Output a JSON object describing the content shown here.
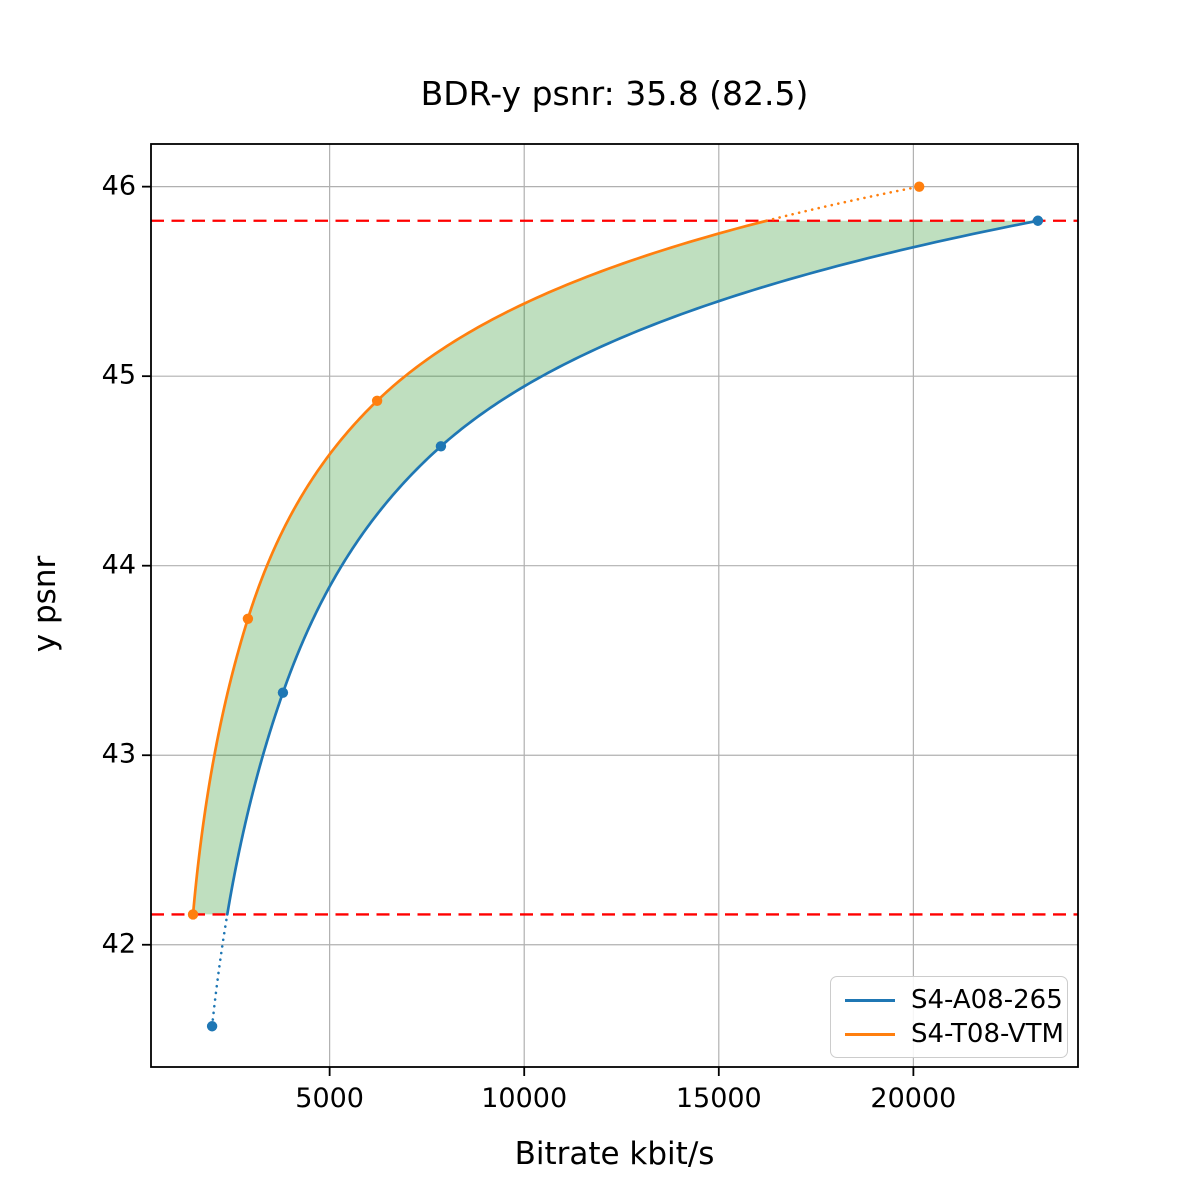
{
  "figure": {
    "title": "BDR-y psnr: 35.8 (82.5)",
    "xlabel": "Bitrate kbit/s",
    "ylabel": "y psnr"
  },
  "chart_data": {
    "type": "line",
    "title": "BDR-y psnr: 35.8 (82.5)",
    "xlabel": "Bitrate kbit/s",
    "ylabel": "y psnr",
    "xlim": [
      410,
      24230
    ],
    "ylim": [
      41.355,
      46.225
    ],
    "x_ticks": [
      5000,
      10000,
      15000,
      20000
    ],
    "x_tick_labels": [
      "5000",
      "10000",
      "15000",
      "20000"
    ],
    "y_ticks": [
      42,
      43,
      44,
      45,
      46
    ],
    "y_tick_labels": [
      "42",
      "43",
      "44",
      "45",
      "46"
    ],
    "grid": true,
    "grid_color": "#b0b0b0",
    "background_color": "#ffffff",
    "legend_position": "lower right",
    "series": [
      {
        "name": "S4-A08-265",
        "color": "#1f77b4",
        "marker": "circle",
        "points": [
          [
            1980,
            41.57
          ],
          [
            3800,
            43.33
          ],
          [
            7860,
            44.63
          ],
          [
            23200,
            45.82
          ]
        ]
      },
      {
        "name": "S4-T08-VTM",
        "color": "#ff7f0e",
        "marker": "circle",
        "points": [
          [
            1490,
            42.16
          ],
          [
            2900,
            43.72
          ],
          [
            6220,
            44.87
          ],
          [
            20150,
            46.0
          ]
        ]
      }
    ],
    "overlap_lines": {
      "low": 42.16,
      "high": 45.82,
      "color": "#ff0000",
      "style": "dashed"
    },
    "fill_between": {
      "color": "rgba(0,128,0,0.25)",
      "y_range": [
        42.16,
        45.82
      ]
    },
    "extrapolation_style": "dotted"
  }
}
